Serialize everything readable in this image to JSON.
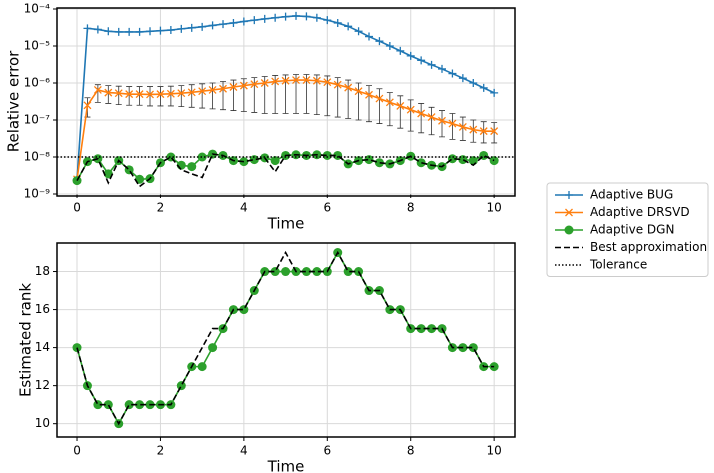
{
  "chart_data": [
    {
      "type": "line",
      "ylabel": "Relative error",
      "xlabel": "Time",
      "log_y": true,
      "grid": true,
      "x": [
        0,
        0.25,
        0.5,
        0.75,
        1,
        1.25,
        1.5,
        1.75,
        2,
        2.25,
        2.5,
        2.75,
        3,
        3.25,
        3.5,
        3.75,
        4,
        4.25,
        4.5,
        4.75,
        5,
        5.25,
        5.5,
        5.75,
        6,
        6.25,
        6.5,
        6.75,
        7,
        7.25,
        7.5,
        7.75,
        8,
        8.25,
        8.5,
        8.75,
        9,
        9.25,
        9.5,
        9.75,
        10
      ],
      "xlim": [
        -0.48,
        10.5
      ],
      "xticks": [
        0,
        2,
        4,
        6,
        8,
        10
      ],
      "ylim": [
        1e-09,
        0.0001
      ],
      "yticks": [
        {
          "value": 1e-09,
          "label": "10⁻⁹"
        },
        {
          "value": 1e-08,
          "label": "10⁻⁸"
        },
        {
          "value": 1e-07,
          "label": "10⁻⁷"
        },
        {
          "value": 1e-06,
          "label": "10⁻⁶"
        },
        {
          "value": 1e-05,
          "label": "10⁻⁵"
        },
        {
          "value": 0.0001,
          "label": "10⁻⁴"
        }
      ],
      "series": [
        {
          "name": "Adaptive BUG",
          "color": "#1f77b4",
          "linestyle": "solid",
          "marker": "+",
          "values": [
            2.5e-09,
            3e-05,
            2.8e-05,
            2.5e-05,
            2.4e-05,
            2.4e-05,
            2.4e-05,
            2.5e-05,
            2.6e-05,
            2.7e-05,
            2.9e-05,
            3.1e-05,
            3.3e-05,
            3.6e-05,
            3.9e-05,
            4.2e-05,
            4.6e-05,
            5e-05,
            5.4e-05,
            5.8e-05,
            6.2e-05,
            6.5e-05,
            6.3e-05,
            5.8e-05,
            5e-05,
            4.2e-05,
            3.4e-05,
            2.5e-05,
            1.8e-05,
            1.35e-05,
            1e-05,
            7.4e-06,
            5.4e-06,
            4.1e-06,
            3.1e-06,
            2.4e-06,
            1.8e-06,
            1.35e-06,
            1e-06,
            7.4e-07,
            5.4e-07
          ]
        },
        {
          "name": "Adaptive DRSVD",
          "color": "#ff7f0e",
          "linestyle": "solid",
          "marker": "x",
          "values": [
            2.5e-09,
            2.5e-07,
            6.5e-07,
            5.5e-07,
            5.3e-07,
            5e-07,
            5e-07,
            4.9e-07,
            5e-07,
            5.1e-07,
            5.3e-07,
            5.6e-07,
            6e-07,
            6.5e-07,
            7e-07,
            7.8e-07,
            8.5e-07,
            9.3e-07,
            1e-06,
            1.1e-06,
            1.15e-06,
            1.2e-06,
            1.2e-06,
            1.15e-06,
            1.05e-06,
            9e-07,
            7.5e-07,
            6e-07,
            4.8e-07,
            3.8e-07,
            3e-07,
            2.4e-07,
            1.9e-07,
            1.5e-07,
            1.2e-07,
            9.5e-08,
            8e-08,
            6.5e-08,
            5.5e-08,
            5e-08,
            5e-08
          ],
          "lower": [
            2.3e-09,
            1.2e-07,
            3e-07,
            2.8e-07,
            2.6e-07,
            2.5e-07,
            2.5e-07,
            2.4e-07,
            2.4e-07,
            2.4e-07,
            2.3e-07,
            2.2e-07,
            2.1e-07,
            2e-07,
            1.9e-07,
            1.8e-07,
            1.7e-07,
            1.6e-07,
            1.5e-07,
            1.5e-07,
            1.5e-07,
            1.5e-07,
            1.5e-07,
            1.4e-07,
            1.3e-07,
            1.2e-07,
            1.1e-07,
            1e-07,
            9e-08,
            8e-08,
            7e-08,
            6e-08,
            5e-08,
            4.5e-08,
            4e-08,
            3.5e-08,
            3e-08,
            2.8e-08,
            2.5e-08,
            2.4e-08,
            2.4e-08
          ],
          "upper": [
            2.7e-09,
            4e-07,
            9e-07,
            8.5e-07,
            8.2e-07,
            8e-07,
            8e-07,
            8e-07,
            8e-07,
            8.2e-07,
            8.5e-07,
            9e-07,
            9.5e-07,
            1e-06,
            1.1e-06,
            1.2e-06,
            1.3e-06,
            1.4e-06,
            1.5e-06,
            1.6e-06,
            1.65e-06,
            1.7e-06,
            1.7e-06,
            1.65e-06,
            1.55e-06,
            1.4e-06,
            1.2e-06,
            1e-06,
            8.5e-07,
            7e-07,
            5.5e-07,
            4.5e-07,
            3.5e-07,
            2.8e-07,
            2.2e-07,
            1.8e-07,
            1.5e-07,
            1.2e-07,
            1e-07,
            9e-08,
            8.5e-08
          ]
        },
        {
          "name": "Adaptive DGN",
          "color": "#2ca02c",
          "linestyle": "solid",
          "marker": "o",
          "values": [
            2.3e-09,
            7.5e-09,
            9e-09,
            3.5e-09,
            8e-09,
            4.5e-09,
            2.5e-09,
            2.6e-09,
            7e-09,
            1e-08,
            6e-09,
            5.5e-09,
            1e-08,
            1.2e-08,
            1.1e-08,
            8e-09,
            7.5e-09,
            8.5e-09,
            9.5e-09,
            8e-09,
            1.1e-08,
            1.15e-08,
            1.1e-08,
            1.15e-08,
            1.1e-08,
            1.1e-08,
            6.5e-09,
            8e-09,
            8.5e-09,
            7e-09,
            6.5e-09,
            8e-09,
            1.05e-08,
            7e-09,
            6e-09,
            5.5e-09,
            9e-09,
            8.5e-09,
            8e-09,
            1.1e-08,
            8e-09
          ]
        },
        {
          "name": "Best approximation",
          "color": "#000000",
          "linestyle": "dashed",
          "marker": null,
          "values": [
            2.3e-09,
            7.5e-09,
            9e-09,
            2e-09,
            8e-09,
            4.5e-09,
            1.6e-09,
            2.6e-09,
            7e-09,
            1e-08,
            4.5e-09,
            3.5e-09,
            2.8e-09,
            1.2e-08,
            1.1e-08,
            8e-09,
            7.5e-09,
            8.5e-09,
            9.5e-09,
            4e-09,
            1.1e-08,
            1.15e-08,
            1.1e-08,
            1.15e-08,
            1.1e-08,
            1.1e-08,
            6.5e-09,
            8e-09,
            8.5e-09,
            7e-09,
            6.5e-09,
            8e-09,
            1.05e-08,
            7e-09,
            6e-09,
            5.5e-09,
            9e-09,
            8.5e-09,
            6e-09,
            1.1e-08,
            8e-09
          ]
        }
      ],
      "reference_line": {
        "name": "Tolerance",
        "value": 1e-08,
        "color": "#000000",
        "linestyle": "dotted"
      }
    },
    {
      "type": "line",
      "ylabel": "Estimated rank",
      "xlabel": "Time",
      "log_y": false,
      "grid": true,
      "x": [
        0,
        0.25,
        0.5,
        0.75,
        1,
        1.25,
        1.5,
        1.75,
        2,
        2.25,
        2.5,
        2.75,
        3,
        3.25,
        3.5,
        3.75,
        4,
        4.25,
        4.5,
        4.75,
        5,
        5.25,
        5.5,
        5.75,
        6,
        6.25,
        6.5,
        6.75,
        7,
        7.25,
        7.5,
        7.75,
        8,
        8.25,
        8.5,
        8.75,
        9,
        9.25,
        9.5,
        9.75,
        10
      ],
      "xlim": [
        -0.48,
        10.5
      ],
      "xticks": [
        0,
        2,
        4,
        6,
        8,
        10
      ],
      "ylim": [
        9.3,
        19.5
      ],
      "yticks": [
        10,
        12,
        14,
        16,
        18
      ],
      "series": [
        {
          "color": "#2ca02c",
          "linestyle": "solid",
          "marker": "o",
          "values": [
            14,
            12,
            11,
            11,
            10,
            11,
            11,
            11,
            11,
            11,
            12,
            13,
            13,
            14,
            15,
            16,
            16,
            17,
            18,
            18,
            18,
            18,
            18,
            18,
            18,
            19,
            18,
            18,
            17,
            17,
            16,
            16,
            15,
            15,
            15,
            15,
            14,
            14,
            14,
            13,
            13
          ]
        },
        {
          "color": "#000000",
          "linestyle": "dashed",
          "marker": null,
          "values": [
            14,
            12,
            11,
            11,
            10,
            11,
            11,
            11,
            11,
            11,
            12,
            13,
            14,
            15,
            15,
            16,
            16,
            17,
            18,
            18,
            19,
            18,
            18,
            18,
            18,
            19,
            18,
            18,
            17,
            17,
            16,
            16,
            15,
            15,
            15,
            15,
            14,
            14,
            14,
            13,
            13
          ]
        }
      ]
    }
  ]
}
